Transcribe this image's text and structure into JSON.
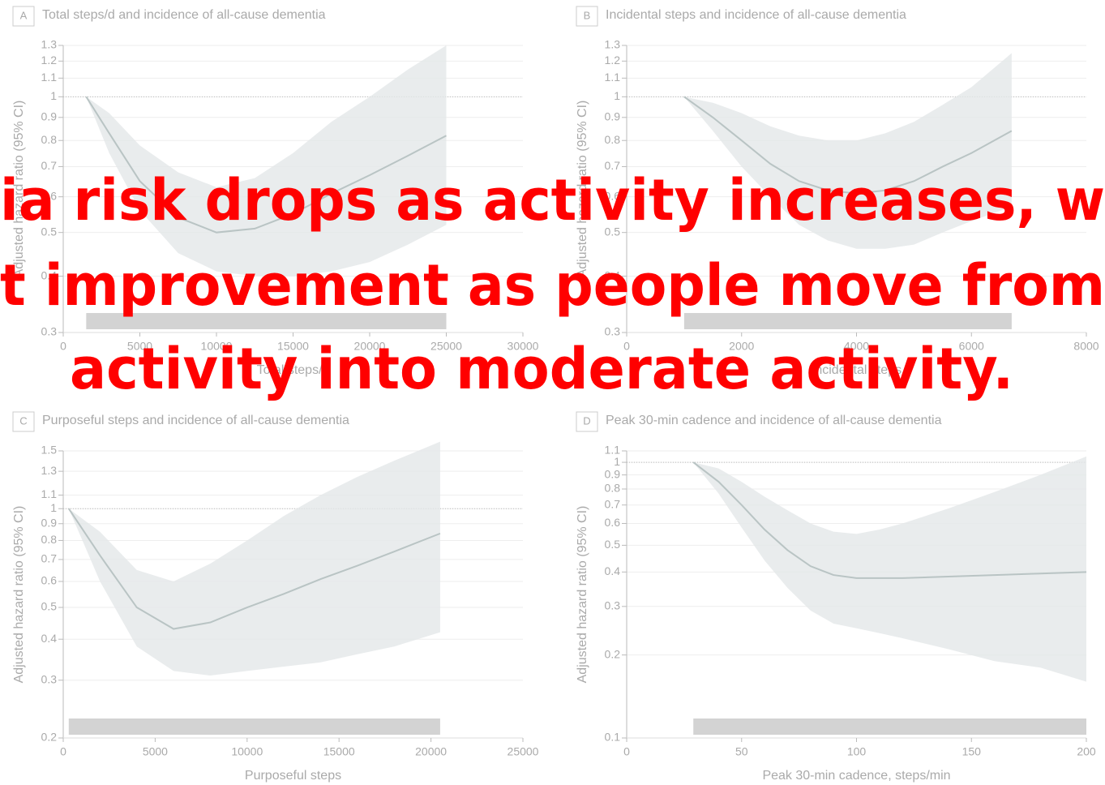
{
  "chart_data": [
    {
      "type": "line",
      "panel_label": "A",
      "title": "Total steps/d and incidence of all-cause dementia",
      "x_label": "Total steps/d",
      "y_label": "Adjusted hazard ratio (95% CI)",
      "log_y": true,
      "hline": 1,
      "color": "#b9c4c4",
      "band_color": "#e4e7e9",
      "xlim": [
        0,
        30000
      ],
      "xticks": [
        0,
        5000,
        10000,
        15000,
        20000,
        25000,
        30000
      ],
      "ylim": [
        0.3,
        1.3
      ],
      "yticks": [
        0.3,
        0.4,
        0.5,
        0.6,
        0.7,
        0.8,
        0.9,
        1,
        1.1,
        1.2,
        1.3
      ],
      "x": [
        1500,
        3000,
        5000,
        7500,
        10000,
        12500,
        15000,
        17500,
        20000,
        22500,
        25000
      ],
      "values": [
        1.0,
        0.83,
        0.65,
        0.54,
        0.5,
        0.51,
        0.55,
        0.61,
        0.67,
        0.74,
        0.82
      ],
      "upper": [
        1.0,
        0.92,
        0.78,
        0.68,
        0.63,
        0.66,
        0.75,
        0.88,
        1.0,
        1.15,
        1.3
      ],
      "lower": [
        1.0,
        0.75,
        0.56,
        0.45,
        0.41,
        0.4,
        0.4,
        0.41,
        0.43,
        0.47,
        0.52
      ]
    },
    {
      "type": "line",
      "panel_label": "B",
      "title": "Incidental steps and incidence of all-cause dementia",
      "x_label": "Incidental steps",
      "y_label": "Adjusted hazard ratio (95% CI)",
      "log_y": true,
      "hline": 1,
      "color": "#b9c4c4",
      "band_color": "#e4e7e9",
      "xlim": [
        0,
        8000
      ],
      "xticks": [
        0,
        2000,
        4000,
        6000,
        8000
      ],
      "ylim": [
        0.3,
        1.3
      ],
      "yticks": [
        0.3,
        0.4,
        0.5,
        0.6,
        0.7,
        0.8,
        0.9,
        1,
        1.1,
        1.2,
        1.3
      ],
      "x": [
        1000,
        1500,
        2000,
        2500,
        3000,
        3500,
        4000,
        4500,
        5000,
        5500,
        6000,
        6700
      ],
      "values": [
        1.0,
        0.9,
        0.8,
        0.71,
        0.65,
        0.62,
        0.61,
        0.62,
        0.65,
        0.7,
        0.75,
        0.84
      ],
      "upper": [
        1.0,
        0.97,
        0.92,
        0.86,
        0.82,
        0.8,
        0.8,
        0.83,
        0.88,
        0.96,
        1.05,
        1.25
      ],
      "lower": [
        1.0,
        0.84,
        0.7,
        0.6,
        0.52,
        0.48,
        0.46,
        0.46,
        0.47,
        0.5,
        0.53,
        0.57
      ]
    },
    {
      "type": "line",
      "panel_label": "C",
      "title": "Purposeful steps and incidence of all-cause dementia",
      "x_label": "Purposeful steps",
      "y_label": "Adjusted hazard ratio (95% CI)",
      "log_y": true,
      "hline": 1,
      "color": "#b9c4c4",
      "band_color": "#e4e7e9",
      "xlim": [
        0,
        25000
      ],
      "xticks": [
        0,
        5000,
        10000,
        15000,
        20000,
        25000
      ],
      "ylim": [
        0.2,
        1.5
      ],
      "yticks": [
        0.2,
        0.3,
        0.4,
        0.5,
        0.6,
        0.7,
        0.8,
        0.9,
        1,
        1.1,
        1.3,
        1.5
      ],
      "x": [
        300,
        2000,
        4000,
        6000,
        8000,
        10000,
        12000,
        14000,
        16000,
        18000,
        20500
      ],
      "values": [
        1.0,
        0.72,
        0.5,
        0.43,
        0.45,
        0.5,
        0.55,
        0.61,
        0.67,
        0.74,
        0.84
      ],
      "upper": [
        1.0,
        0.85,
        0.65,
        0.6,
        0.68,
        0.8,
        0.95,
        1.1,
        1.25,
        1.4,
        1.6
      ],
      "lower": [
        1.0,
        0.6,
        0.38,
        0.32,
        0.31,
        0.32,
        0.33,
        0.34,
        0.36,
        0.38,
        0.42
      ]
    },
    {
      "type": "line",
      "panel_label": "D",
      "title": "Peak 30-min cadence and incidence of all-cause dementia",
      "x_label": "Peak 30-min cadence, steps/min",
      "y_label": "Adjusted hazard ratio (95% CI)",
      "log_y": true,
      "hline": 1,
      "color": "#b9c4c4",
      "band_color": "#e4e7e9",
      "xlim": [
        0,
        200
      ],
      "xticks": [
        0,
        50,
        100,
        150,
        200
      ],
      "ylim": [
        0.1,
        1.1
      ],
      "yticks": [
        0.1,
        0.2,
        0.3,
        0.4,
        0.5,
        0.6,
        0.7,
        0.8,
        0.9,
        1,
        1.1
      ],
      "x": [
        29,
        40,
        50,
        60,
        70,
        80,
        90,
        100,
        110,
        120,
        140,
        160,
        180,
        200
      ],
      "values": [
        1.0,
        0.85,
        0.7,
        0.57,
        0.48,
        0.42,
        0.39,
        0.38,
        0.38,
        0.38,
        0.385,
        0.39,
        0.395,
        0.4
      ],
      "upper": [
        1.0,
        0.95,
        0.85,
        0.75,
        0.67,
        0.6,
        0.56,
        0.55,
        0.57,
        0.6,
        0.68,
        0.78,
        0.9,
        1.05
      ],
      "lower": [
        1.0,
        0.77,
        0.58,
        0.44,
        0.35,
        0.29,
        0.26,
        0.25,
        0.24,
        0.23,
        0.21,
        0.19,
        0.18,
        0.16
      ]
    }
  ],
  "overlay": {
    "lines": [
      "ia risk drops as activity increases, w",
      "t improvement as people move from",
      "activity into moderate activity."
    ]
  }
}
